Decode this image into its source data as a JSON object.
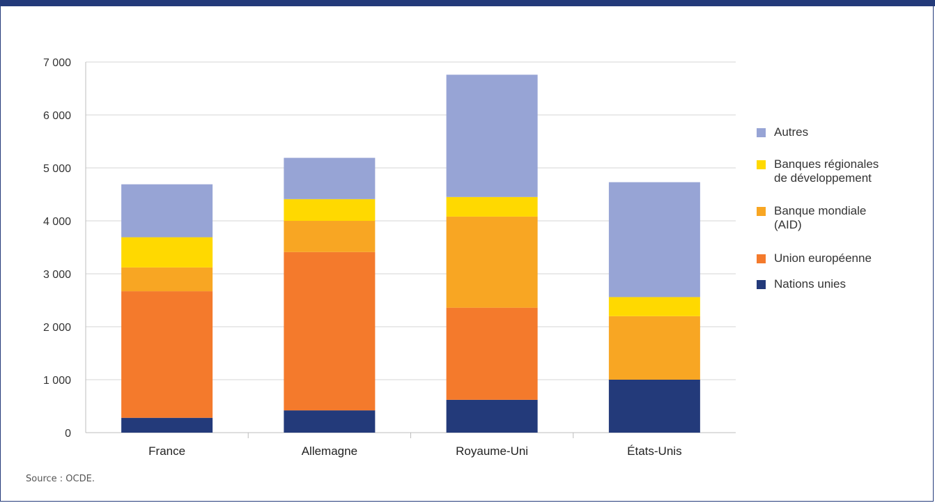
{
  "source": "Source : OCDE.",
  "chart_data": {
    "type": "bar",
    "stacked": true,
    "categories": [
      "France",
      "Allemagne",
      "Royaume-Uni",
      "États-Unis"
    ],
    "series": [
      {
        "name": "Nations unies",
        "color": "#233a7a",
        "values": [
          280,
          420,
          620,
          1000
        ]
      },
      {
        "name": "Union européenne",
        "color": "#f47a2c",
        "values": [
          2390,
          2990,
          1740,
          0
        ]
      },
      {
        "name": "Banque mondiale (AID)",
        "color": "#f8a623",
        "values": [
          450,
          590,
          1720,
          1200
        ]
      },
      {
        "name": "Banques régionales de développement",
        "color": "#ffd900",
        "values": [
          570,
          410,
          370,
          360
        ]
      },
      {
        "name": "Autres",
        "color": "#97a4d5",
        "values": [
          1000,
          780,
          2310,
          2170
        ]
      }
    ],
    "ylim": [
      0,
      7000
    ],
    "yticks": [
      0,
      1000,
      2000,
      3000,
      4000,
      5000,
      6000,
      7000
    ],
    "ytick_labels": [
      "0",
      "1 000",
      "2 000",
      "3 000",
      "4 000",
      "5 000",
      "6 000",
      "7 000"
    ],
    "grid": true,
    "legend_position": "right",
    "legend_order": [
      "Autres",
      "Banques régionales de développement",
      "Banque mondiale (AID)",
      "Union européenne",
      "Nations unies"
    ],
    "legend_lines": {
      "Autres": [
        "Autres"
      ],
      "Banques régionales de développement": [
        "Banques régionales",
        "de développement"
      ],
      "Banque mondiale (AID)": [
        "Banque mondiale",
        "(AID)"
      ],
      "Union européenne": [
        "Union européenne"
      ],
      "Nations unies": [
        "Nations unies"
      ]
    }
  }
}
